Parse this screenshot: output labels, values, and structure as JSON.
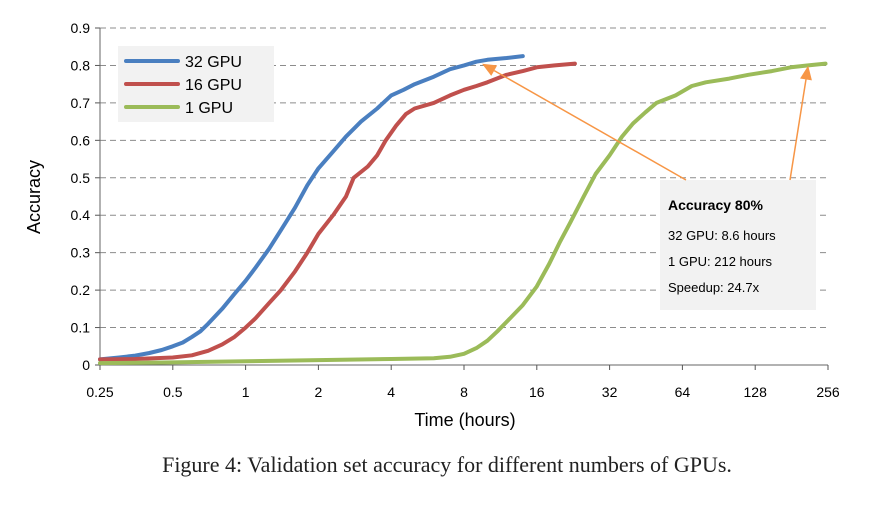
{
  "caption": "Figure 4: Validation set accuracy for different numbers of GPUs.",
  "chart_data": {
    "type": "line",
    "xlabel": "Time (hours)",
    "ylabel": "Accuracy",
    "xscale": "log2",
    "xlim": [
      0.25,
      256
    ],
    "ylim": [
      0,
      0.9
    ],
    "xticks": [
      "0.25",
      "0.5",
      "1",
      "2",
      "4",
      "8",
      "16",
      "32",
      "64",
      "128",
      "256"
    ],
    "yticks": [
      "0",
      "0.1",
      "0.2",
      "0.3",
      "0.4",
      "0.5",
      "0.6",
      "0.7",
      "0.8",
      "0.9"
    ],
    "grid": "horizontal dashed",
    "legend_position": "top-left",
    "series": [
      {
        "name": "32 GPU",
        "color": "#4a7fc0",
        "points": [
          [
            0.25,
            0.015
          ],
          [
            0.3,
            0.02
          ],
          [
            0.35,
            0.025
          ],
          [
            0.4,
            0.032
          ],
          [
            0.45,
            0.04
          ],
          [
            0.5,
            0.05
          ],
          [
            0.55,
            0.06
          ],
          [
            0.6,
            0.075
          ],
          [
            0.65,
            0.09
          ],
          [
            0.7,
            0.11
          ],
          [
            0.8,
            0.15
          ],
          [
            0.9,
            0.19
          ],
          [
            1.0,
            0.225
          ],
          [
            1.1,
            0.26
          ],
          [
            1.25,
            0.31
          ],
          [
            1.4,
            0.36
          ],
          [
            1.6,
            0.42
          ],
          [
            1.8,
            0.48
          ],
          [
            2.0,
            0.525
          ],
          [
            2.3,
            0.57
          ],
          [
            2.6,
            0.61
          ],
          [
            3.0,
            0.65
          ],
          [
            3.5,
            0.685
          ],
          [
            4.0,
            0.72
          ],
          [
            4.5,
            0.735
          ],
          [
            5.0,
            0.75
          ],
          [
            6.0,
            0.77
          ],
          [
            7.0,
            0.79
          ],
          [
            8.0,
            0.8
          ],
          [
            9.0,
            0.81
          ],
          [
            10.0,
            0.815
          ],
          [
            12.0,
            0.82
          ],
          [
            14.0,
            0.825
          ]
        ]
      },
      {
        "name": "16 GPU",
        "color": "#c0504d",
        "points": [
          [
            0.25,
            0.015
          ],
          [
            0.35,
            0.016
          ],
          [
            0.5,
            0.02
          ],
          [
            0.6,
            0.026
          ],
          [
            0.7,
            0.038
          ],
          [
            0.8,
            0.055
          ],
          [
            0.9,
            0.075
          ],
          [
            1.0,
            0.1
          ],
          [
            1.1,
            0.125
          ],
          [
            1.25,
            0.165
          ],
          [
            1.4,
            0.2
          ],
          [
            1.6,
            0.25
          ],
          [
            1.8,
            0.3
          ],
          [
            2.0,
            0.35
          ],
          [
            2.3,
            0.4
          ],
          [
            2.6,
            0.45
          ],
          [
            2.8,
            0.5
          ],
          [
            3.2,
            0.53
          ],
          [
            3.5,
            0.56
          ],
          [
            3.8,
            0.6
          ],
          [
            4.2,
            0.64
          ],
          [
            4.6,
            0.67
          ],
          [
            5.0,
            0.685
          ],
          [
            6.0,
            0.7
          ],
          [
            7.0,
            0.72
          ],
          [
            8.0,
            0.735
          ],
          [
            9.0,
            0.745
          ],
          [
            10.0,
            0.755
          ],
          [
            12.0,
            0.775
          ],
          [
            14.0,
            0.785
          ],
          [
            16.0,
            0.795
          ],
          [
            19.0,
            0.8
          ],
          [
            23.0,
            0.805
          ]
        ]
      },
      {
        "name": "1 GPU",
        "color": "#9bbb59",
        "points": [
          [
            0.25,
            0.005
          ],
          [
            0.5,
            0.007
          ],
          [
            1.0,
            0.01
          ],
          [
            2.0,
            0.013
          ],
          [
            4.0,
            0.016
          ],
          [
            6.0,
            0.018
          ],
          [
            7.0,
            0.022
          ],
          [
            8.0,
            0.03
          ],
          [
            9.0,
            0.045
          ],
          [
            10.0,
            0.065
          ],
          [
            11.0,
            0.09
          ],
          [
            12.0,
            0.115
          ],
          [
            14.0,
            0.16
          ],
          [
            16.0,
            0.21
          ],
          [
            18.0,
            0.27
          ],
          [
            20.0,
            0.33
          ],
          [
            22.0,
            0.38
          ],
          [
            25.0,
            0.45
          ],
          [
            28.0,
            0.51
          ],
          [
            32.0,
            0.56
          ],
          [
            36.0,
            0.61
          ],
          [
            40.0,
            0.645
          ],
          [
            45.0,
            0.675
          ],
          [
            50.0,
            0.7
          ],
          [
            60.0,
            0.72
          ],
          [
            70.0,
            0.745
          ],
          [
            80.0,
            0.755
          ],
          [
            100.0,
            0.765
          ],
          [
            120.0,
            0.775
          ],
          [
            150.0,
            0.785
          ],
          [
            180.0,
            0.795
          ],
          [
            212.0,
            0.8
          ],
          [
            250.0,
            0.805
          ]
        ]
      }
    ],
    "annotation": {
      "title": "Accuracy 80%",
      "lines": [
        "32 GPU: 8.6 hours",
        "1 GPU: 212 hours",
        "Speedup: 24.7x"
      ],
      "arrow_color": "#f79646",
      "arrow_targets": [
        [
          9.5,
          0.81
        ],
        [
          212,
          0.805
        ]
      ]
    }
  }
}
